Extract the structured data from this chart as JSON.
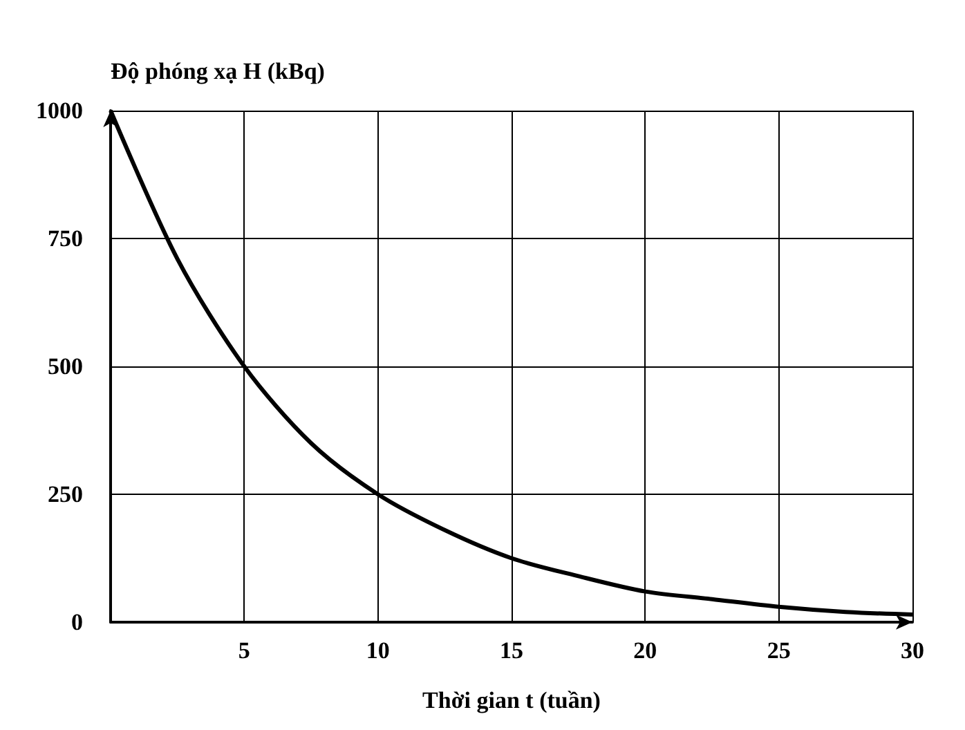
{
  "chart_data": {
    "type": "line",
    "xlabel": "Thời gian t (tuần)",
    "ylabel": "Độ phóng xạ H (kBq)",
    "x": [
      0,
      2.5,
      5,
      7.5,
      10,
      12.5,
      15,
      17.5,
      20,
      22.5,
      25,
      27.5,
      30
    ],
    "series": [
      {
        "color": "#000000",
        "values": [
          1000,
          710,
          500,
          350,
          250,
          180,
          125,
          90,
          60,
          45,
          30,
          20,
          15
        ]
      }
    ],
    "xlim": [
      0,
      30
    ],
    "ylim": [
      0,
      1000
    ],
    "xticks": [
      5,
      10,
      15,
      20,
      25,
      30
    ],
    "yticks": [
      0,
      250,
      500,
      750,
      1000
    ],
    "grid": true,
    "marker": "none",
    "line_style": "solid"
  }
}
